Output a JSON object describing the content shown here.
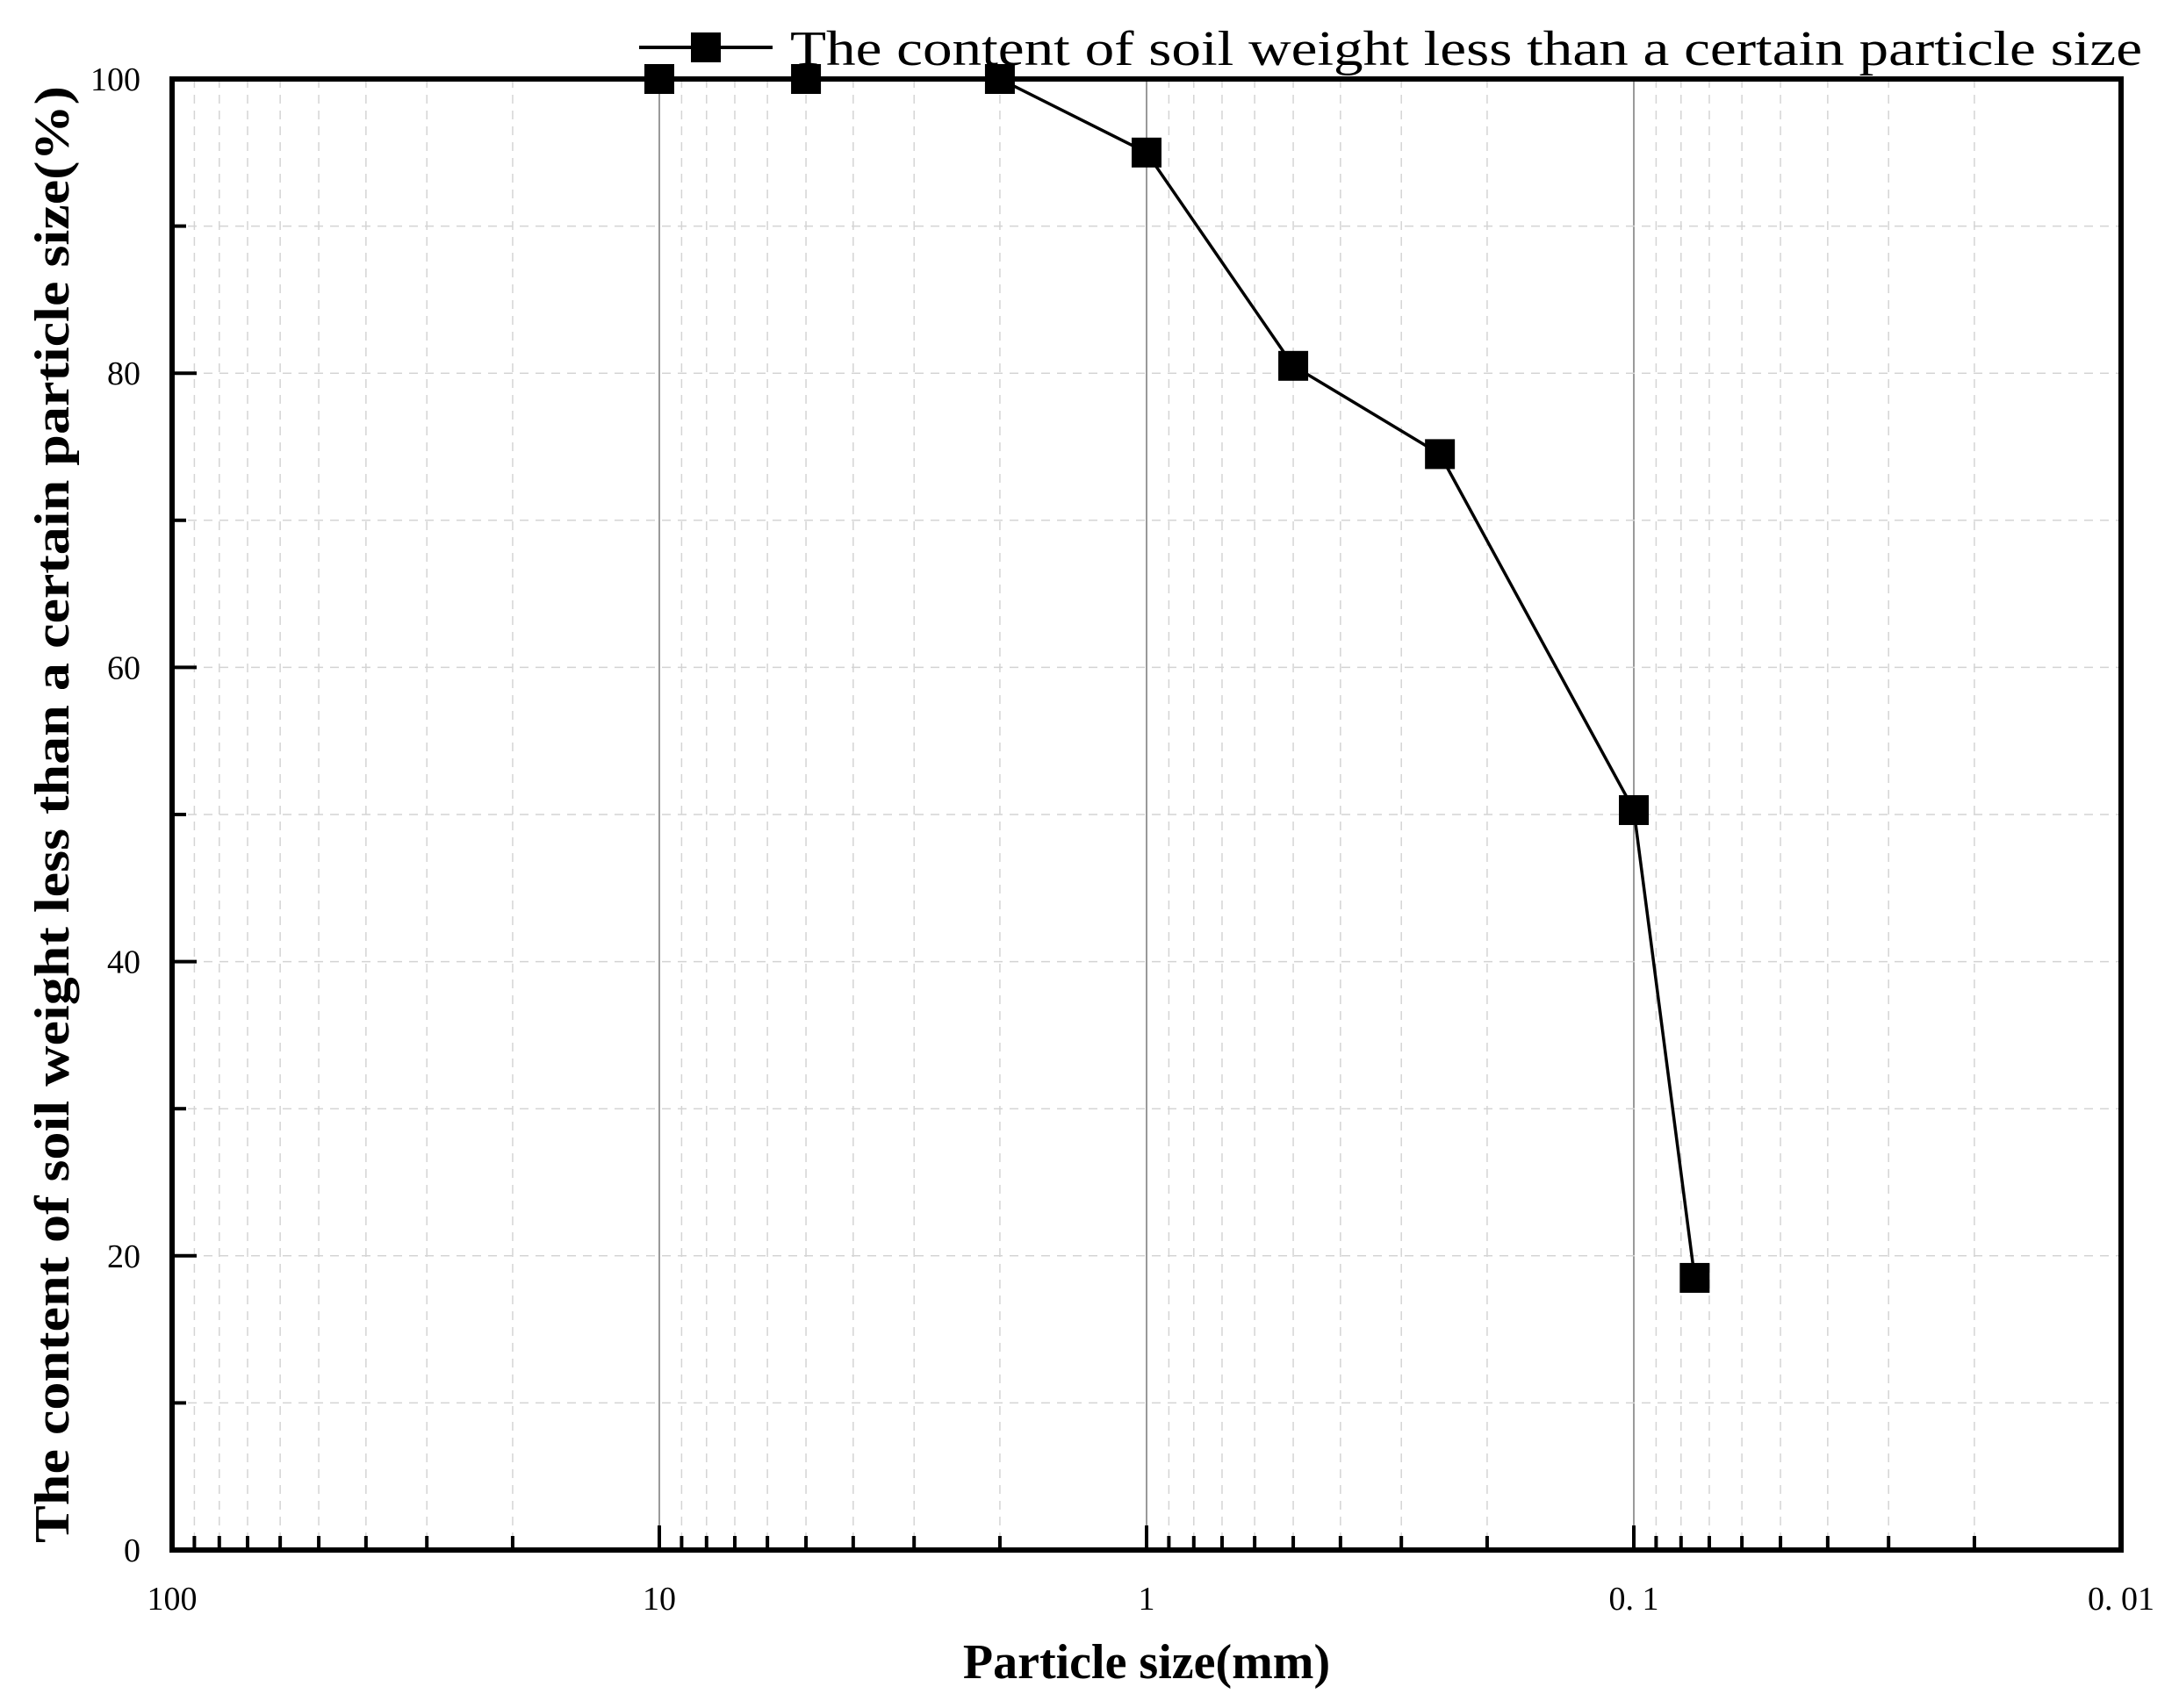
{
  "chart_data": {
    "type": "line",
    "title": "",
    "xlabel": "Particle size(mm)",
    "ylabel": "The content of soil weight less than a certain particle size(%)",
    "xscale": "log",
    "x_reversed": true,
    "xlim": [
      100,
      0.01
    ],
    "ylim": [
      0,
      100
    ],
    "xticks": [
      100,
      10,
      1,
      0.1,
      0.01
    ],
    "xtick_labels": [
      "100",
      "10",
      "1",
      "0. 1",
      "0. 01"
    ],
    "yticks": [
      0,
      20,
      40,
      60,
      80,
      100
    ],
    "ytick_labels": [
      "0",
      "20",
      "40",
      "60",
      "80",
      "100"
    ],
    "grid": true,
    "legend_position": "top-right",
    "series": [
      {
        "name": "The content of soil weight less than a certain particle size",
        "marker": "square",
        "color": "#000000",
        "x": [
          10,
          5,
          2,
          1,
          0.5,
          0.25,
          0.1,
          0.075
        ],
        "y": [
          100,
          100,
          100,
          95,
          80.5,
          74.5,
          50.3,
          18.5
        ]
      }
    ]
  }
}
